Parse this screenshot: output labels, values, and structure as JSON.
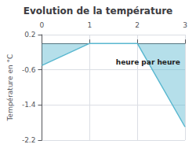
{
  "chart_data": {
    "type": "line",
    "title": "Evolution de la température",
    "ylabel": "Température en °C",
    "annotations": [
      {
        "text": "heure par heure",
        "x": 1.55,
        "y": -0.35
      }
    ],
    "x": [
      0,
      1,
      2,
      3
    ],
    "values": [
      -0.5,
      0.0,
      0.0,
      -1.9
    ],
    "color": "#5ab8d0",
    "xlim": [
      0,
      3
    ],
    "xticks": [
      0,
      1,
      2,
      3
    ],
    "ylim": [
      -2.2,
      0.2
    ],
    "yticks": [
      0.2,
      -0.6,
      -1.4,
      -2.2
    ],
    "grid": true
  }
}
